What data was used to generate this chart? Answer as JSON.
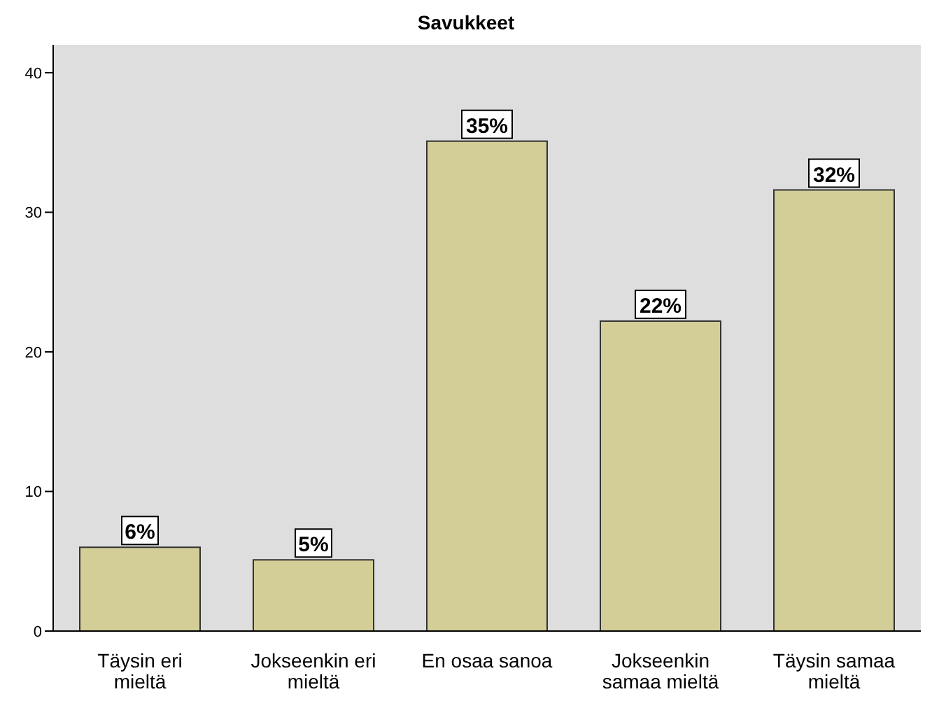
{
  "chart_data": {
    "type": "bar",
    "title": "Savukkeet",
    "categories": [
      "Täysin eri mieltä",
      "Jokseenkin eri mieltä",
      "En osaa sanoa",
      "Jokseenkin samaa mieltä",
      "Täysin samaa mieltä"
    ],
    "values": [
      6.0,
      5.1,
      35.1,
      22.2,
      31.6
    ],
    "value_labels": [
      "6%",
      "5%",
      "35%",
      "22%",
      "32%"
    ],
    "color": "#d3ce97",
    "ylim": [
      0,
      42
    ],
    "yticks": [
      0,
      10,
      20,
      30,
      40
    ],
    "grid": false,
    "legend": false
  }
}
